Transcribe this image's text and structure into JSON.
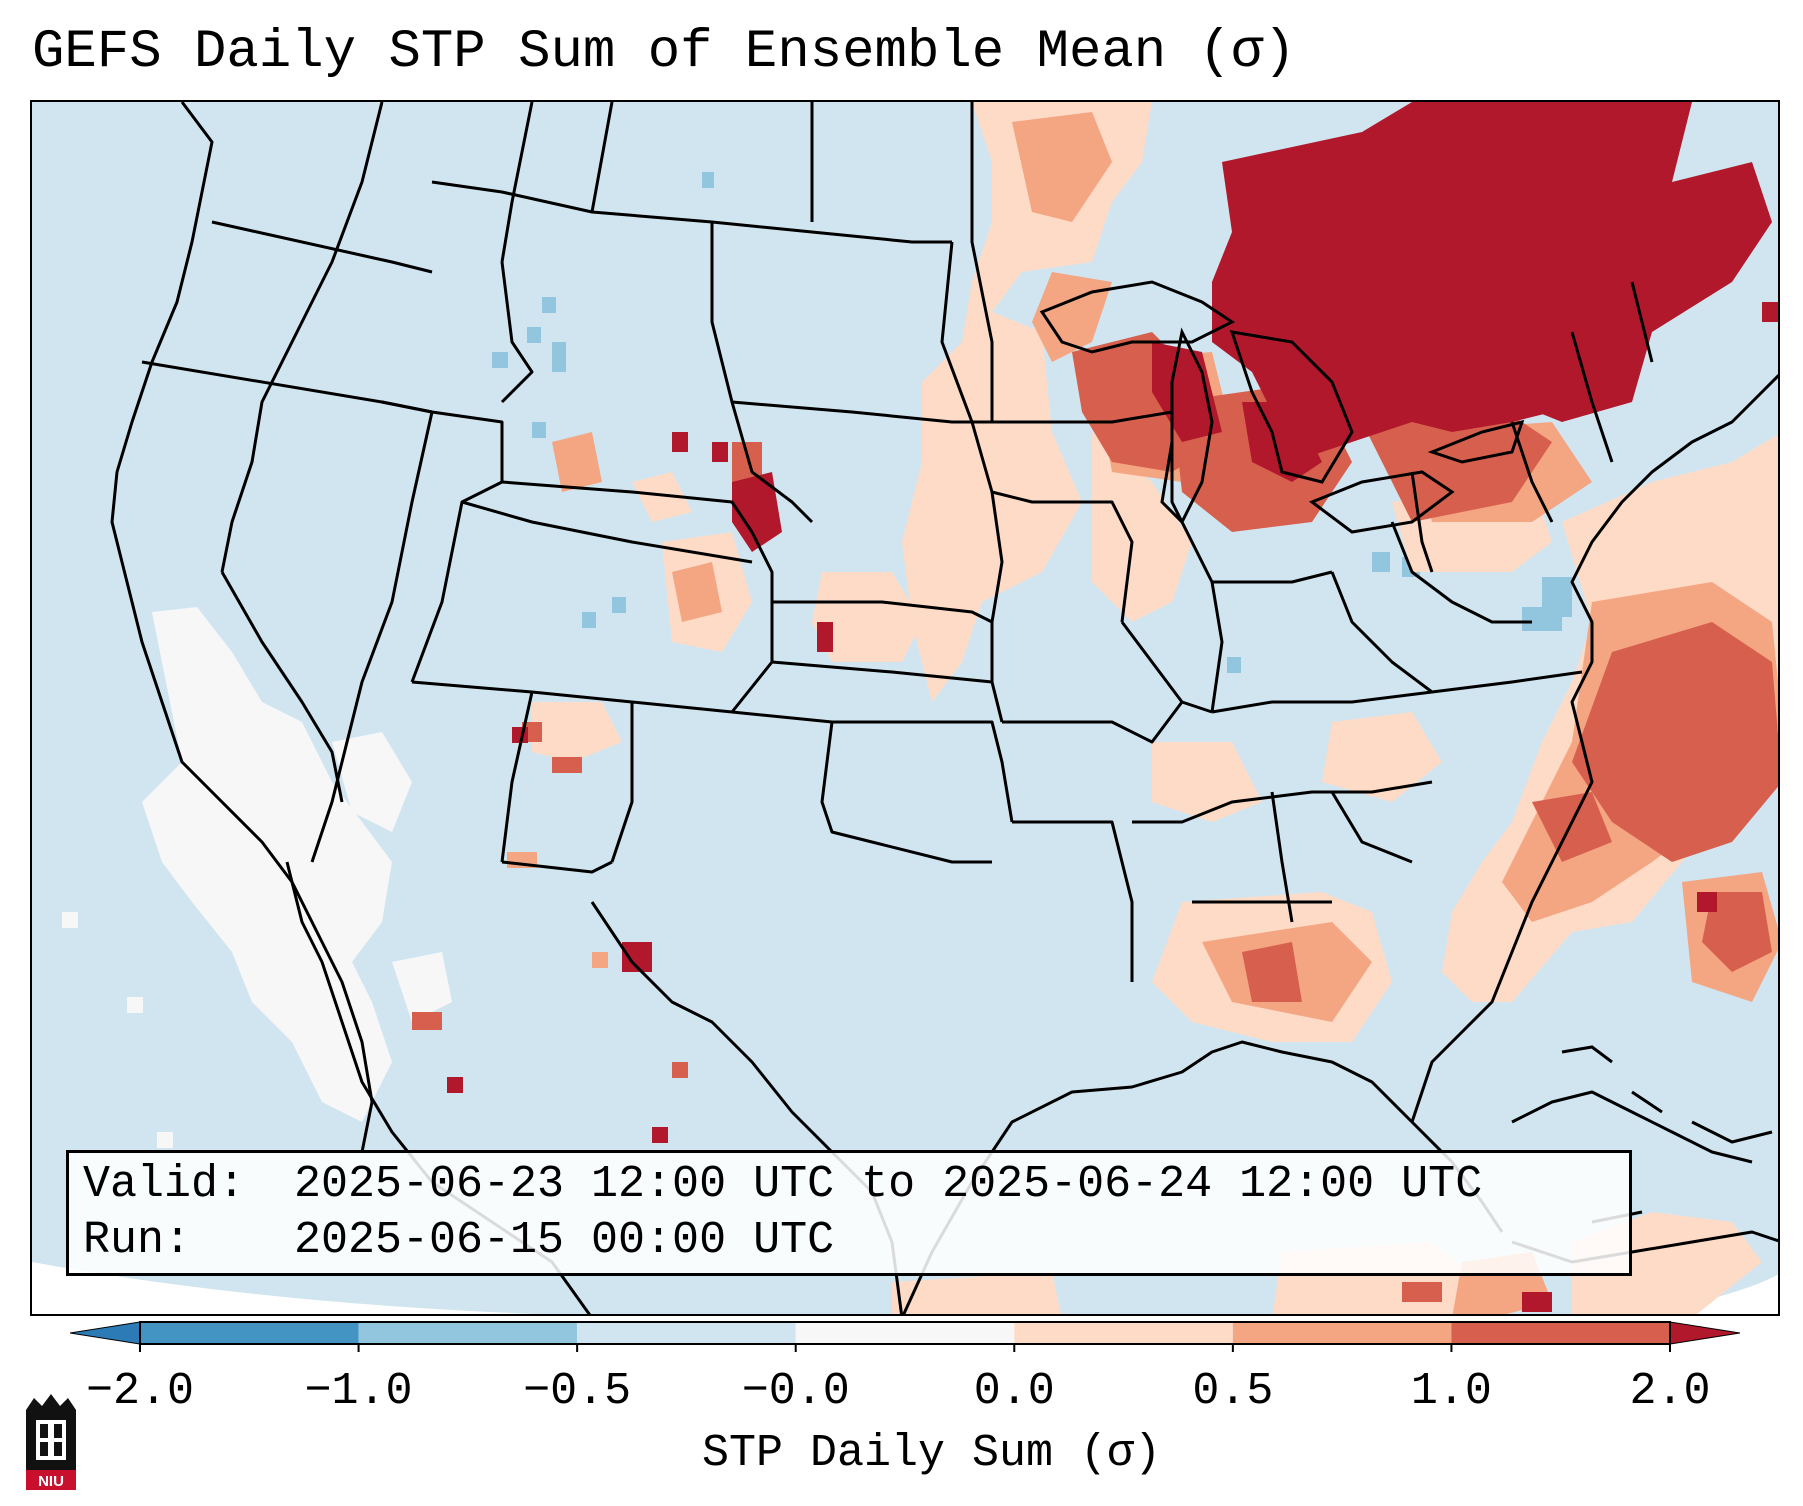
{
  "title": "GEFS Daily STP Sum of Ensemble Mean (σ)",
  "info": {
    "valid_label": "Valid:",
    "valid_value": "2025-06-23 12:00 UTC to 2025-06-24 12:00 UTC",
    "run_label": "Run:",
    "run_value": "2025-06-15 00:00 UTC"
  },
  "colorbar": {
    "label": "STP Daily Sum (σ)",
    "ticks": [
      "−2.0",
      "−1.0",
      "−0.5",
      "−0.0",
      "0.0",
      "0.5",
      "1.0",
      "2.0"
    ],
    "bins": [
      {
        "color": "#2c7bb6",
        "range": "< -2.0"
      },
      {
        "color": "#4393c3",
        "range": "-2.0 to -1.0"
      },
      {
        "color": "#92c5de",
        "range": "-1.0 to -0.5"
      },
      {
        "color": "#d1e5f0",
        "range": "-0.5 to -0.0"
      },
      {
        "color": "#f7f7f7",
        "range": "-0.0 to 0.0"
      },
      {
        "color": "#fddbc7",
        "range": "0.0 to 0.5"
      },
      {
        "color": "#f4a582",
        "range": "0.5 to 1.0"
      },
      {
        "color": "#d6604d",
        "range": "1.0 to 2.0"
      },
      {
        "color": "#b2182b",
        "range": "> 2.0"
      }
    ]
  },
  "map": {
    "region": "Continental United States",
    "background_color": "#d1e5f0",
    "land_outline_color": "#000000"
  },
  "logo": {
    "text": "NIU",
    "color": "#c8102e"
  }
}
